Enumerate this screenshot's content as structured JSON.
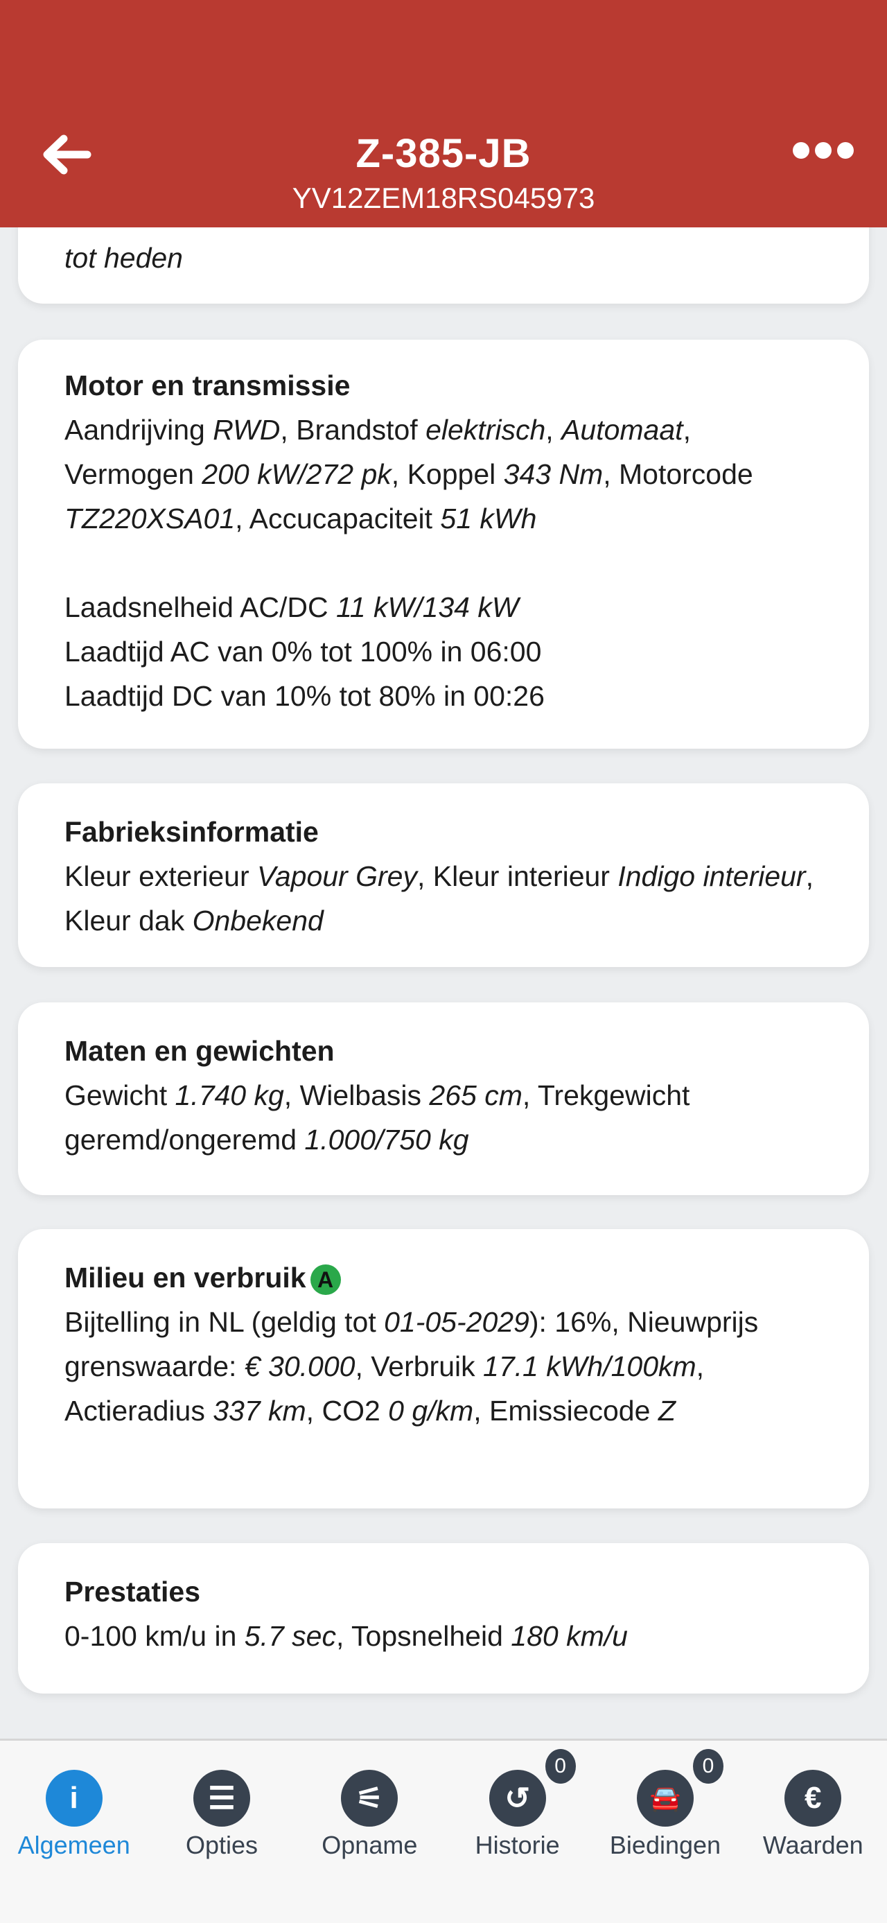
{
  "header": {
    "title": "Z-385-JB",
    "subtitle": "YV12ZEM18RS045973",
    "back_icon": "arrow-left-icon",
    "more_icon": "more-dots-icon",
    "color": "#b93a31"
  },
  "cards": {
    "previous": {
      "segments": [
        {
          "t": "tot heden",
          "i": true
        }
      ]
    },
    "motor": {
      "title": "Motor en transmissie",
      "p1": [
        {
          "t": "Aandrijving "
        },
        {
          "t": "RWD",
          "i": true
        },
        {
          "t": ", Brandstof "
        },
        {
          "t": "elektrisch",
          "i": true
        },
        {
          "t": ", "
        },
        {
          "t": "Automaat",
          "i": true
        },
        {
          "t": ", Vermogen "
        },
        {
          "t": "200 kW/272 pk",
          "i": true
        },
        {
          "t": ", Koppel "
        },
        {
          "t": "343 Nm",
          "i": true
        },
        {
          "t": ", Motorcode "
        },
        {
          "t": "TZ220XSA01",
          "i": true
        },
        {
          "t": ", Accucapaciteit "
        },
        {
          "t": "51 kWh",
          "i": true
        }
      ],
      "p2": [
        {
          "t": "Laadsnelheid AC/DC "
        },
        {
          "t": "11 kW/134 kW",
          "i": true
        }
      ],
      "p3": [
        {
          "t": "Laadtijd AC van 0% tot 100% in 06:00"
        }
      ],
      "p4": [
        {
          "t": "Laadtijd DC van 10% tot 80% in 00:26"
        }
      ]
    },
    "fabriek": {
      "title": "Fabrieksinformatie",
      "p1": [
        {
          "t": "Kleur exterieur "
        },
        {
          "t": "Vapour Grey",
          "i": true
        },
        {
          "t": ", Kleur interieur "
        },
        {
          "t": "Indigo interieur",
          "i": true
        },
        {
          "t": ", Kleur dak "
        },
        {
          "t": "Onbekend",
          "i": true
        }
      ]
    },
    "maten": {
      "title": "Maten en gewichten",
      "p1": [
        {
          "t": "Gewicht "
        },
        {
          "t": "1.740 kg",
          "i": true
        },
        {
          "t": ", Wielbasis "
        },
        {
          "t": "265 cm",
          "i": true
        },
        {
          "t": ", Trekgewicht geremd/ongeremd "
        },
        {
          "t": "1.000/750 kg",
          "i": true
        }
      ]
    },
    "milieu": {
      "title": "Milieu en verbruik",
      "label": "A",
      "label_color": "#2aa84a",
      "p1": [
        {
          "t": "Bijtelling in NL (geldig tot "
        },
        {
          "t": "01-05-2029",
          "i": true
        },
        {
          "t": "): 16%, Nieuwprijs grenswaarde: "
        },
        {
          "t": "€ 30.000",
          "i": true
        },
        {
          "t": ", Verbruik "
        },
        {
          "t": "17.1 kWh/100km",
          "i": true
        },
        {
          "t": ", Actieradius "
        },
        {
          "t": "337 km",
          "i": true
        },
        {
          "t": ", CO2 "
        },
        {
          "t": "0 g/km",
          "i": true
        },
        {
          "t": ", Emissiecode "
        },
        {
          "t": "Z",
          "i": true
        }
      ]
    },
    "prestaties": {
      "title": "Prestaties",
      "p1": [
        {
          "t": "0-100 km/u in "
        },
        {
          "t": "5.7 sec",
          "i": true
        },
        {
          "t": ", Topsnelheid "
        },
        {
          "t": "180 km/u",
          "i": true
        }
      ]
    }
  },
  "nav": {
    "active_color": "#1e88d8",
    "items": [
      {
        "label": "Algemeen",
        "icon": "info-icon",
        "glyph": "i"
      },
      {
        "label": "Opties",
        "icon": "list-icon",
        "glyph": "☰"
      },
      {
        "label": "Opname",
        "icon": "sliders-icon",
        "glyph": "⚟"
      },
      {
        "label": "Historie",
        "icon": "history-icon",
        "glyph": "↺",
        "count": "0"
      },
      {
        "label": "Biedingen",
        "icon": "car-offer-icon",
        "glyph": "🚘",
        "count": "0"
      },
      {
        "label": "Waarden",
        "icon": "euro-icon",
        "glyph": "€"
      }
    ]
  }
}
